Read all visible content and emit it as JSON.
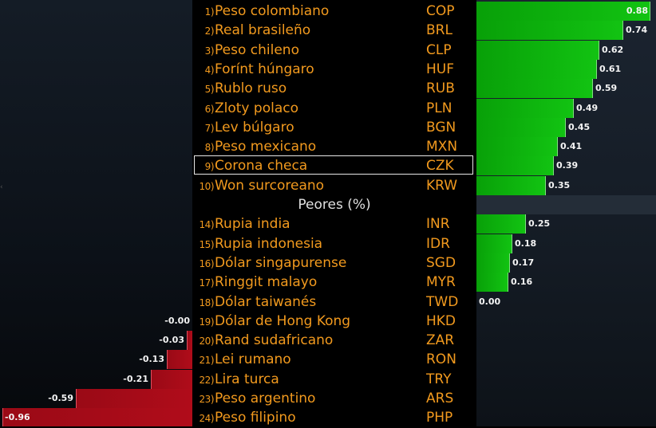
{
  "section_header": "Peores (%)",
  "colors": {
    "text": "#f29a1e",
    "positive": "#12c312",
    "negative": "#b00c1a",
    "selection": "#e8e8e8"
  },
  "rows": [
    {
      "rank": "1",
      "name": "Peso colombiano",
      "code": "COP",
      "value": 0.88,
      "label": "0.88"
    },
    {
      "rank": "2",
      "name": "Real brasileño",
      "code": "BRL",
      "value": 0.74,
      "label": "0.74"
    },
    {
      "rank": "3",
      "name": "Peso chileno",
      "code": "CLP",
      "value": 0.62,
      "label": "0.62"
    },
    {
      "rank": "4",
      "name": "Forínt húngaro",
      "code": "HUF",
      "value": 0.61,
      "label": "0.61"
    },
    {
      "rank": "5",
      "name": "Rublo ruso",
      "code": "RUB",
      "value": 0.59,
      "label": "0.59"
    },
    {
      "rank": "6",
      "name": "Zloty polaco",
      "code": "PLN",
      "value": 0.49,
      "label": "0.49"
    },
    {
      "rank": "7",
      "name": "Lev búlgaro",
      "code": "BGN",
      "value": 0.45,
      "label": "0.45"
    },
    {
      "rank": "8",
      "name": "Peso mexicano",
      "code": "MXN",
      "value": 0.41,
      "label": "0.41"
    },
    {
      "rank": "9",
      "name": "Corona checa",
      "code": "CZK",
      "value": 0.39,
      "label": "0.39",
      "selected": true
    },
    {
      "rank": "10",
      "name": "Won surcoreano",
      "code": "KRW",
      "value": 0.35,
      "label": "0.35"
    },
    {
      "rank": "14",
      "name": "Rupia india",
      "code": "INR",
      "value": 0.25,
      "label": "0.25"
    },
    {
      "rank": "15",
      "name": "Rupia indonesia",
      "code": "IDR",
      "value": 0.18,
      "label": "0.18"
    },
    {
      "rank": "16",
      "name": "Dólar singapurense",
      "code": "SGD",
      "value": 0.17,
      "label": "0.17"
    },
    {
      "rank": "17",
      "name": "Ringgit malayo",
      "code": "MYR",
      "value": 0.16,
      "label": "0.16"
    },
    {
      "rank": "18",
      "name": "Dólar taiwanés",
      "code": "TWD",
      "value": 0.0,
      "label": "0.00"
    },
    {
      "rank": "19",
      "name": "Dólar de Hong Kong",
      "code": "HKD",
      "value": -0.0,
      "label": "-0.00"
    },
    {
      "rank": "20",
      "name": "Rand sudafricano",
      "code": "ZAR",
      "value": -0.03,
      "label": "-0.03"
    },
    {
      "rank": "21",
      "name": "Lei rumano",
      "code": "RON",
      "value": -0.13,
      "label": "-0.13"
    },
    {
      "rank": "22",
      "name": "Lira turca",
      "code": "TRY",
      "value": -0.21,
      "label": "-0.21"
    },
    {
      "rank": "23",
      "name": "Peso argentino",
      "code": "ARS",
      "value": -0.59,
      "label": "-0.59"
    },
    {
      "rank": "24",
      "name": "Peso filipino",
      "code": "PHP",
      "value": -0.96,
      "label": "-0.96"
    }
  ]
}
